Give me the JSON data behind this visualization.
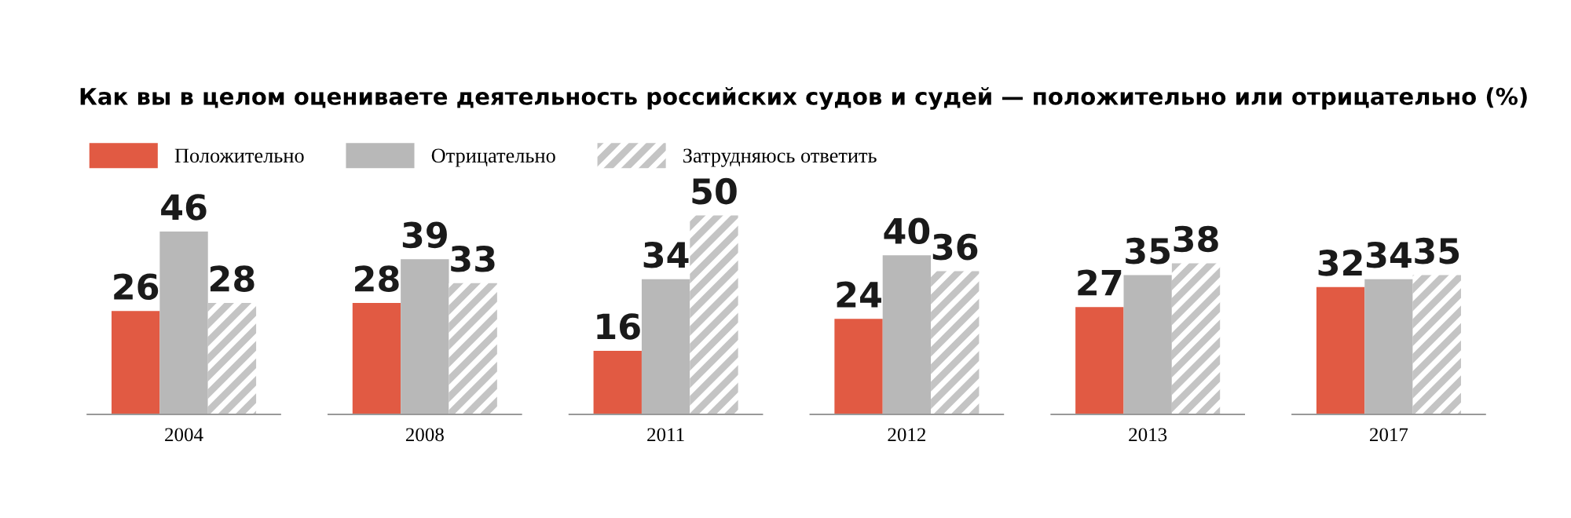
{
  "chart_data": {
    "type": "bar",
    "title": "Как вы в целом оцениваете деятельность российских судов и судей — положительно или отрицательно (%)",
    "categories": [
      "2004",
      "2008",
      "2011",
      "2012",
      "2013",
      "2017"
    ],
    "series": [
      {
        "name": "Положительно",
        "color": "#e15a43",
        "values": [
          26,
          28,
          16,
          24,
          27,
          32
        ]
      },
      {
        "name": "Отрицательно",
        "color": "#b8b8b8",
        "values": [
          46,
          39,
          34,
          40,
          35,
          34
        ]
      },
      {
        "name": "Затрудняюсь ответить",
        "color": "#c4c4c4",
        "values": [
          28,
          33,
          50,
          36,
          38,
          35
        ]
      }
    ],
    "data_labels": true,
    "legend": "top left",
    "grid": false
  }
}
